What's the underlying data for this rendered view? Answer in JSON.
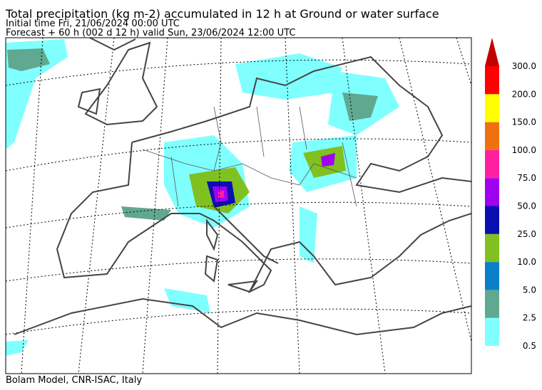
{
  "header": {
    "title": "Total precipitation (kg m-2) accumulated in  12 h at Ground or water surface",
    "initial_time": "Initial time  Fri, 21/06/2024  00:00 UTC",
    "forecast": "Forecast  +  60 h  (002 d 12 h)  valid Sun, 23/06/2024 12:00 UTC"
  },
  "colorbar": {
    "over_color": "#c00000",
    "levels": [
      {
        "label": "0.5",
        "color": "#80ffff"
      },
      {
        "label": "2.5",
        "color": "#60a890"
      },
      {
        "label": "5.0",
        "color": "#0a80c8"
      },
      {
        "label": "10.0",
        "color": "#80c020"
      },
      {
        "label": "25.0",
        "color": "#0a10b0"
      },
      {
        "label": "50.0",
        "color": "#a000f0"
      },
      {
        "label": "75.0",
        "color": "#ff20a0"
      },
      {
        "label": "100.0",
        "color": "#f07010"
      },
      {
        "label": "150.0",
        "color": "#ffff00"
      },
      {
        "label": "200.0",
        "color": "#ff0000"
      },
      {
        "label": "300.0",
        "color": null
      }
    ]
  },
  "footer": {
    "credit": "Bolam Model, CNR-ISAC, Italy"
  }
}
